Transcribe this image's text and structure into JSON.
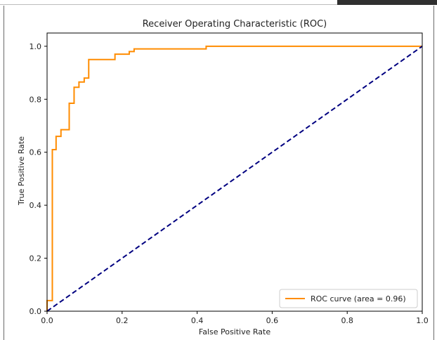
{
  "colors": {
    "roc_curve": "#ff8c00",
    "chance_line": "#000080",
    "axes": "#000000",
    "background": "#ffffff"
  },
  "chart_data": {
    "type": "line",
    "title": "Receiver Operating Characteristic (ROC)",
    "xlabel": "False Positive Rate",
    "ylabel": "True Positive Rate",
    "xlim": [
      0.0,
      1.0
    ],
    "ylim": [
      0.0,
      1.05
    ],
    "xticks": [
      "0.0",
      "0.2",
      "0.4",
      "0.6",
      "0.8",
      "1.0"
    ],
    "yticks": [
      "0.0",
      "0.2",
      "0.4",
      "0.6",
      "0.8",
      "1.0"
    ],
    "grid": false,
    "legend_position": "lower-right",
    "series": [
      {
        "name": "ROC curve (area = 0.96)",
        "style": "solid",
        "color": "#ff8c00",
        "x": [
          0.0,
          0.0,
          0.014,
          0.014,
          0.024,
          0.024,
          0.037,
          0.037,
          0.059,
          0.059,
          0.072,
          0.072,
          0.085,
          0.085,
          0.099,
          0.099,
          0.111,
          0.111,
          0.181,
          0.181,
          0.219,
          0.219,
          0.232,
          0.232,
          0.424,
          0.424,
          1.0
        ],
        "y": [
          0.0,
          0.04,
          0.04,
          0.61,
          0.61,
          0.66,
          0.66,
          0.685,
          0.685,
          0.785,
          0.785,
          0.845,
          0.845,
          0.865,
          0.865,
          0.88,
          0.88,
          0.95,
          0.95,
          0.97,
          0.97,
          0.98,
          0.98,
          0.99,
          0.99,
          1.0,
          1.0
        ]
      },
      {
        "style": "dashed",
        "color": "#000080",
        "x": [
          0.0,
          1.0
        ],
        "y": [
          0.0,
          1.0
        ]
      }
    ]
  }
}
